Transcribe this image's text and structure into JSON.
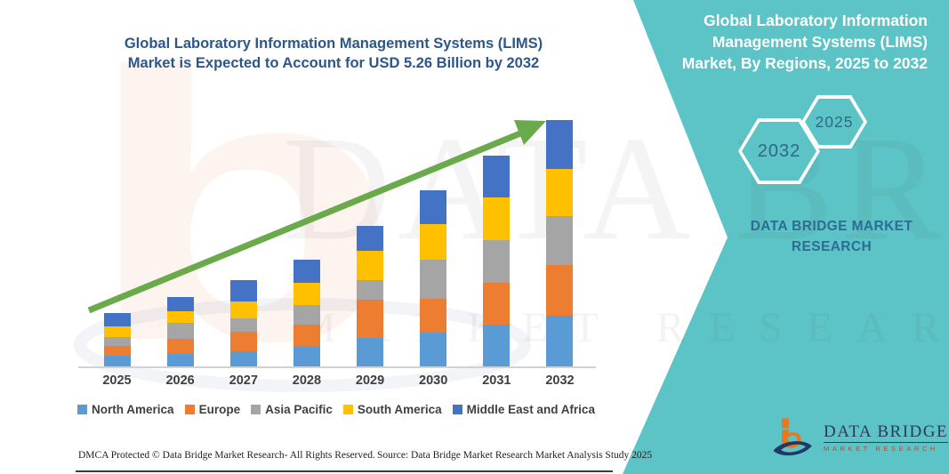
{
  "main_title": {
    "lines": [
      "Global Laboratory Information Management Systems (LIMS)",
      "Market is Expected to Account for USD 5.26 Billion by 2032"
    ]
  },
  "right_panel": {
    "title_lines": [
      "Global Laboratory Information",
      "Management Systems (LIMS)",
      "Market, By Regions, 2025 to 2032"
    ],
    "hexagons": [
      {
        "label": "2032"
      },
      {
        "label": "2025"
      }
    ],
    "brand_lines": [
      "DATA BRIDGE MARKET",
      "RESEARCH"
    ]
  },
  "chart_data": {
    "type": "bar",
    "stacked": true,
    "title": "Global Laboratory Information Management Systems (LIMS) Market, By Regions, 2025 to 2032",
    "categories": [
      "2025",
      "2026",
      "2027",
      "2028",
      "2029",
      "2030",
      "2031",
      "2032"
    ],
    "series": [
      {
        "name": "North America",
        "color": "#5b9bd5",
        "values": [
          0.23,
          0.27,
          0.32,
          0.42,
          0.61,
          0.72,
          0.89,
          1.08
        ]
      },
      {
        "name": "Europe",
        "color": "#ed7d31",
        "values": [
          0.21,
          0.32,
          0.42,
          0.48,
          0.82,
          0.72,
          0.89,
          1.08
        ]
      },
      {
        "name": "Asia Pacific",
        "color": "#a5a5a5",
        "values": [
          0.19,
          0.34,
          0.28,
          0.42,
          0.42,
          0.84,
          0.91,
          1.05
        ]
      },
      {
        "name": "South America",
        "color": "#ffc000",
        "values": [
          0.23,
          0.25,
          0.36,
          0.48,
          0.63,
          0.76,
          0.91,
          1.01
        ]
      },
      {
        "name": "Middle East and Africa",
        "color": "#4472c4",
        "values": [
          0.28,
          0.3,
          0.46,
          0.49,
          0.53,
          0.72,
          0.89,
          1.04
        ]
      }
    ],
    "totals": [
      1.14,
      1.48,
      1.84,
      2.29,
      3.01,
      3.76,
      4.49,
      5.26
    ],
    "units": "USD billion (estimated from bar heights; no value axis shown)",
    "xlabel": "",
    "ylabel": "",
    "gridlines": false,
    "value_axis_shown": false,
    "legend_position": "bottom",
    "annotations": [
      "green upward trend arrow across bars"
    ]
  },
  "watermark": {
    "row1": "DATA BRIDGE",
    "row2": "MARKET RESEARCH",
    "big_letter": "b"
  },
  "logo": {
    "name": "DATA BRIDGE",
    "tagline": "MARKET RESEARCH"
  },
  "footer": {
    "left": "DMCA Protected © Data Bridge Market Research-  All Rights Reserved.",
    "right": "Source: Data Bridge Market Research  Market Analysis Study 2025"
  },
  "colors": {
    "panel_teal": "#5cc3c6",
    "title_blue": "#2b578a",
    "arrow_green": "#6aaa4b",
    "axis_label_gray": "#3f3f3f",
    "hex_label_blue": "#2f6988",
    "logo_navy": "#2e3b55",
    "logo_orange": "#e87722"
  },
  "icons": {
    "trend_arrow": "green-growth-arrow",
    "hexagon_badges": "outlined-hexagons",
    "logo_mark": "data-bridge-b-and-swoosh"
  }
}
